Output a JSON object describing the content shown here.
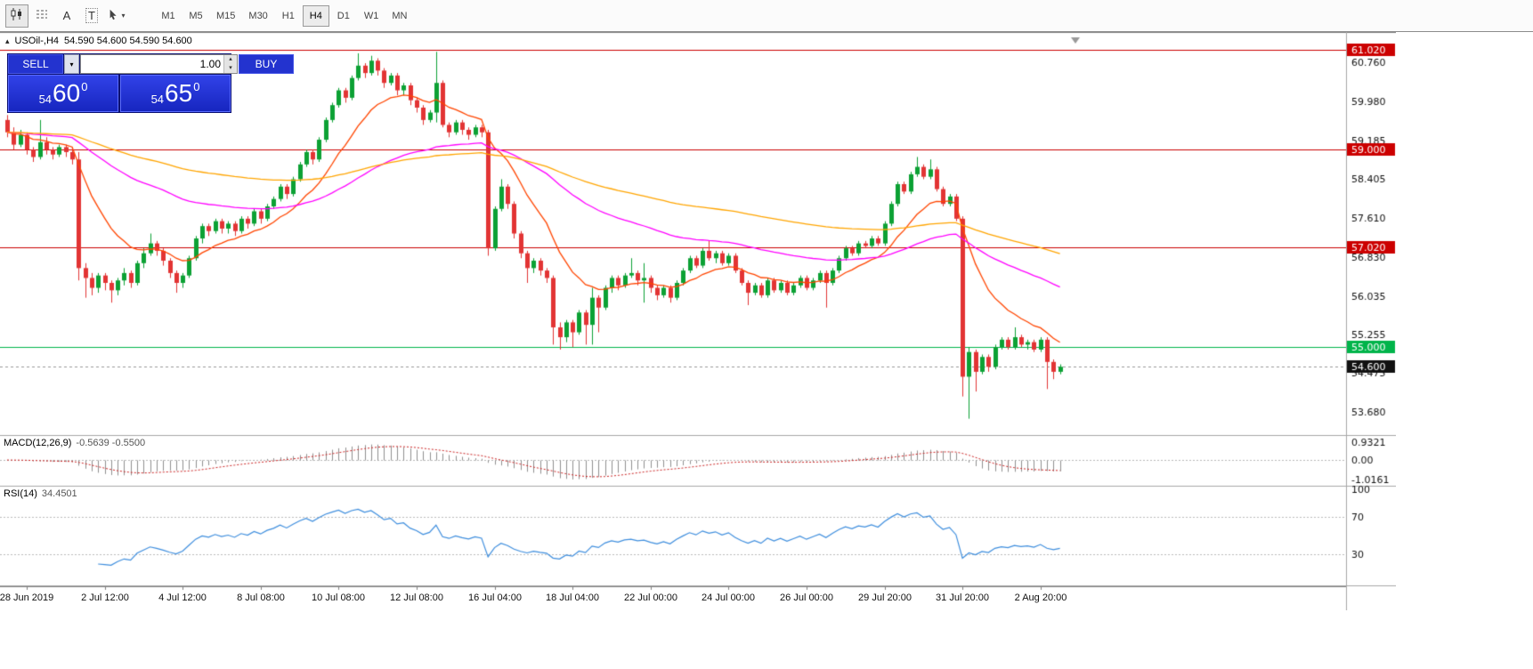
{
  "toolbar": {
    "text_tool_glyph": "A",
    "template_tool_glyph": "T",
    "caret_down": "▾",
    "timeframes": [
      "M1",
      "M5",
      "M15",
      "M30",
      "H1",
      "H4",
      "D1",
      "W1",
      "MN"
    ],
    "active_timeframe": "H4"
  },
  "chart": {
    "marker": "▴",
    "title_symbol": "USOil-,H4",
    "title_quotes": "54.590 54.600 54.590 54.600"
  },
  "trade_panel": {
    "sell_label": "SELL",
    "buy_label": "BUY",
    "volume": "1.00",
    "sell_price_small": "54",
    "sell_price_big": "60",
    "sell_price_sup": "0",
    "buy_price_small": "54",
    "buy_price_big": "65",
    "buy_price_sup": "0",
    "spinner_up": "▴",
    "spinner_down": "▾",
    "dropdown_caret": "▾"
  },
  "indicators": {
    "macd_name": "MACD(12,26,9)",
    "macd_values": "-0.5639 -0.5500",
    "rsi_name": "RSI(14)",
    "rsi_value": "34.4501"
  },
  "chart_data": {
    "type": "candlestick",
    "symbol": "USOil-",
    "timeframe": "H4",
    "price_axis": {
      "max": 61.345,
      "min": 53.237
    },
    "price_axis_labels": [
      "60.760",
      "59.980",
      "59.185",
      "58.405",
      "57.610",
      "56.830",
      "56.035",
      "55.255",
      "54.475",
      "53.680"
    ],
    "hlines": [
      {
        "price": 61.02,
        "color": "#CC0000",
        "tag": "61.020"
      },
      {
        "price": 59.0,
        "color": "#CC0000",
        "tag": "59.000"
      },
      {
        "price": 57.02,
        "color": "#CC0000",
        "tag": "57.020"
      },
      {
        "price": 55.0,
        "color": "#00B44A",
        "tag": "55.000"
      }
    ],
    "current_price": {
      "value": 54.6,
      "tag": "54.600",
      "color": "#111111",
      "line_color": "#999999"
    },
    "colors": {
      "up": "#0CA134",
      "down": "#E23434"
    },
    "moving_averages": [
      {
        "period": 13,
        "color": "#FF4500"
      },
      {
        "period": 55,
        "color": "#FF00FF"
      },
      {
        "period": 120,
        "color": "#FFA500"
      }
    ],
    "macd": {
      "params": "12,26,9",
      "value": -0.5639,
      "signal": -0.55,
      "scale_max": 1.27,
      "scale_min": -1.31,
      "axis": [
        {
          "v": 0.9321,
          "t": "0.9321"
        },
        {
          "v": 0,
          "t": "0.00"
        },
        {
          "v": -1.0161,
          "t": "-1.0161"
        }
      ],
      "bar_color": "#909090",
      "signal_color": "#CC2222"
    },
    "rsi": {
      "period": 14,
      "value": 34.4501,
      "scale_max": 103,
      "scale_min": -4,
      "levels": [
        70,
        30
      ],
      "axis": [
        {
          "v": 100,
          "t": "100"
        },
        {
          "v": 70,
          "t": "70"
        },
        {
          "v": 30,
          "t": "30"
        }
      ],
      "line_color": "#3E8EDE"
    },
    "time_labels": [
      {
        "index": 3,
        "label": "28 Jun 2019"
      },
      {
        "index": 15,
        "label": "2 Jul 12:00"
      },
      {
        "index": 27,
        "label": "4 Jul 12:00"
      },
      {
        "index": 39,
        "label": "8 Jul 08:00"
      },
      {
        "index": 51,
        "label": "10 Jul 08:00"
      },
      {
        "index": 63,
        "label": "12 Jul 08:00"
      },
      {
        "index": 75,
        "label": "16 Jul 04:00"
      },
      {
        "index": 87,
        "label": "18 Jul 04:00"
      },
      {
        "index": 99,
        "label": "22 Jul 00:00"
      },
      {
        "index": 111,
        "label": "24 Jul 00:00"
      },
      {
        "index": 123,
        "label": "26 Jul 00:00"
      },
      {
        "index": 135,
        "label": "29 Jul 20:00"
      },
      {
        "index": 147,
        "label": "31 Jul 20:00"
      },
      {
        "index": 159,
        "label": "2 Aug 20:00"
      }
    ],
    "ohlc": [
      [
        59.6,
        59.7,
        59.25,
        59.35
      ],
      [
        59.35,
        59.45,
        59.0,
        59.1
      ],
      [
        59.1,
        59.4,
        59.05,
        59.3
      ],
      [
        59.3,
        59.35,
        58.9,
        59.0
      ],
      [
        59.0,
        59.05,
        58.75,
        58.85
      ],
      [
        58.85,
        59.6,
        58.8,
        59.15
      ],
      [
        59.15,
        59.25,
        58.9,
        59.0
      ],
      [
        59.0,
        59.05,
        58.8,
        58.9
      ],
      [
        58.9,
        59.1,
        58.85,
        59.05
      ],
      [
        59.05,
        59.1,
        58.85,
        58.95
      ],
      [
        58.95,
        59.05,
        58.7,
        58.8
      ],
      [
        58.8,
        58.95,
        56.35,
        56.6
      ],
      [
        56.6,
        56.7,
        56.0,
        56.4
      ],
      [
        56.4,
        56.5,
        56.05,
        56.2
      ],
      [
        56.2,
        56.5,
        56.1,
        56.45
      ],
      [
        56.45,
        56.5,
        56.15,
        56.3
      ],
      [
        56.3,
        56.35,
        55.9,
        56.15
      ],
      [
        56.15,
        56.4,
        56.05,
        56.35
      ],
      [
        56.35,
        56.6,
        56.25,
        56.5
      ],
      [
        56.5,
        56.55,
        56.2,
        56.3
      ],
      [
        56.3,
        56.75,
        56.25,
        56.7
      ],
      [
        56.7,
        57.0,
        56.6,
        56.9
      ],
      [
        56.9,
        57.3,
        56.85,
        57.1
      ],
      [
        57.1,
        57.15,
        56.85,
        56.95
      ],
      [
        56.95,
        57.0,
        56.65,
        56.75
      ],
      [
        56.75,
        56.8,
        56.4,
        56.5
      ],
      [
        56.5,
        56.55,
        56.1,
        56.3
      ],
      [
        56.3,
        56.5,
        56.2,
        56.45
      ],
      [
        56.45,
        56.85,
        56.4,
        56.8
      ],
      [
        56.8,
        57.25,
        56.75,
        57.2
      ],
      [
        57.2,
        57.5,
        57.1,
        57.45
      ],
      [
        57.45,
        57.5,
        57.25,
        57.35
      ],
      [
        57.35,
        57.6,
        57.3,
        57.55
      ],
      [
        57.55,
        57.6,
        57.3,
        57.4
      ],
      [
        57.4,
        57.55,
        57.3,
        57.5
      ],
      [
        57.5,
        57.55,
        57.25,
        57.35
      ],
      [
        57.35,
        57.65,
        57.3,
        57.6
      ],
      [
        57.6,
        57.65,
        57.4,
        57.5
      ],
      [
        57.5,
        57.8,
        57.45,
        57.75
      ],
      [
        57.75,
        57.8,
        57.5,
        57.6
      ],
      [
        57.6,
        57.9,
        57.55,
        57.85
      ],
      [
        57.85,
        58.05,
        57.8,
        58.0
      ],
      [
        58.0,
        58.3,
        57.95,
        58.25
      ],
      [
        58.25,
        58.3,
        58.0,
        58.1
      ],
      [
        58.1,
        58.45,
        58.05,
        58.4
      ],
      [
        58.4,
        58.75,
        58.35,
        58.7
      ],
      [
        58.7,
        59.0,
        58.65,
        58.95
      ],
      [
        58.95,
        59.0,
        58.7,
        58.8
      ],
      [
        58.8,
        59.25,
        58.75,
        59.2
      ],
      [
        59.2,
        59.65,
        59.15,
        59.6
      ],
      [
        59.6,
        59.95,
        59.55,
        59.9
      ],
      [
        59.9,
        60.25,
        59.85,
        60.2
      ],
      [
        60.2,
        60.25,
        59.95,
        60.05
      ],
      [
        60.05,
        60.5,
        60.0,
        60.45
      ],
      [
        60.45,
        60.95,
        60.4,
        60.7
      ],
      [
        60.7,
        60.75,
        60.45,
        60.55
      ],
      [
        60.55,
        60.9,
        60.5,
        60.8
      ],
      [
        60.8,
        60.85,
        60.5,
        60.6
      ],
      [
        60.6,
        60.65,
        60.25,
        60.35
      ],
      [
        60.35,
        60.55,
        60.3,
        60.5
      ],
      [
        60.5,
        60.55,
        60.1,
        60.2
      ],
      [
        60.2,
        60.35,
        60.1,
        60.3
      ],
      [
        60.3,
        60.35,
        59.9,
        60.0
      ],
      [
        60.0,
        60.05,
        59.75,
        59.85
      ],
      [
        59.85,
        59.9,
        59.5,
        59.6
      ],
      [
        59.6,
        59.8,
        59.55,
        59.75
      ],
      [
        59.75,
        60.98,
        59.55,
        60.35
      ],
      [
        60.35,
        60.4,
        59.45,
        59.5
      ],
      [
        59.5,
        59.55,
        59.25,
        59.35
      ],
      [
        59.35,
        59.6,
        59.3,
        59.55
      ],
      [
        59.55,
        59.6,
        59.3,
        59.4
      ],
      [
        59.4,
        59.45,
        59.2,
        59.3
      ],
      [
        59.3,
        59.5,
        59.25,
        59.45
      ],
      [
        59.45,
        59.5,
        59.25,
        59.35
      ],
      [
        59.35,
        59.4,
        56.85,
        57.0
      ],
      [
        57.0,
        57.85,
        56.95,
        57.8
      ],
      [
        57.8,
        58.4,
        57.75,
        58.25
      ],
      [
        58.25,
        58.3,
        57.8,
        57.9
      ],
      [
        57.9,
        57.95,
        57.2,
        57.3
      ],
      [
        57.3,
        57.35,
        56.8,
        56.9
      ],
      [
        56.9,
        56.95,
        56.3,
        56.6
      ],
      [
        56.6,
        56.8,
        56.5,
        56.75
      ],
      [
        56.75,
        56.8,
        56.45,
        56.55
      ],
      [
        56.55,
        56.6,
        56.3,
        56.4
      ],
      [
        56.4,
        56.45,
        55.05,
        55.4
      ],
      [
        55.4,
        55.5,
        54.95,
        55.2
      ],
      [
        55.2,
        55.55,
        55.1,
        55.5
      ],
      [
        55.5,
        55.55,
        55.0,
        55.3
      ],
      [
        55.3,
        55.75,
        55.25,
        55.7
      ],
      [
        55.7,
        55.75,
        55.05,
        55.45
      ],
      [
        55.45,
        56.2,
        55.05,
        56.0
      ],
      [
        56.0,
        56.05,
        55.3,
        55.8
      ],
      [
        55.8,
        56.25,
        55.75,
        56.2
      ],
      [
        56.2,
        56.45,
        56.1,
        56.4
      ],
      [
        56.4,
        56.45,
        56.15,
        56.25
      ],
      [
        56.25,
        56.5,
        56.2,
        56.45
      ],
      [
        56.45,
        56.8,
        56.4,
        56.5
      ],
      [
        56.5,
        56.55,
        56.25,
        56.35
      ],
      [
        56.35,
        56.7,
        55.9,
        56.4
      ],
      [
        56.4,
        56.45,
        56.1,
        56.2
      ],
      [
        56.2,
        56.25,
        55.95,
        56.05
      ],
      [
        56.05,
        56.25,
        56.0,
        56.2
      ],
      [
        56.2,
        56.25,
        55.9,
        56.0
      ],
      [
        56.0,
        56.35,
        55.95,
        56.3
      ],
      [
        56.3,
        56.6,
        56.25,
        56.55
      ],
      [
        56.55,
        56.85,
        56.5,
        56.8
      ],
      [
        56.8,
        56.85,
        56.6,
        56.65
      ],
      [
        56.65,
        57.0,
        56.6,
        56.95
      ],
      [
        56.95,
        57.15,
        56.75,
        56.8
      ],
      [
        56.8,
        56.95,
        56.7,
        56.9
      ],
      [
        56.9,
        56.95,
        56.65,
        56.7
      ],
      [
        56.7,
        56.9,
        56.65,
        56.85
      ],
      [
        56.85,
        56.9,
        56.5,
        56.55
      ],
      [
        56.55,
        56.6,
        56.25,
        56.3
      ],
      [
        56.3,
        56.35,
        55.85,
        56.1
      ],
      [
        56.1,
        56.3,
        56.05,
        56.25
      ],
      [
        56.25,
        56.3,
        56.0,
        56.05
      ],
      [
        56.05,
        56.4,
        56.0,
        56.35
      ],
      [
        56.35,
        56.4,
        56.1,
        56.15
      ],
      [
        56.15,
        56.35,
        56.1,
        56.3
      ],
      [
        56.3,
        56.35,
        56.05,
        56.1
      ],
      [
        56.1,
        56.3,
        56.05,
        56.25
      ],
      [
        56.25,
        56.45,
        56.2,
        56.4
      ],
      [
        56.4,
        56.45,
        56.15,
        56.2
      ],
      [
        56.2,
        56.4,
        56.15,
        56.35
      ],
      [
        56.35,
        56.55,
        56.3,
        56.5
      ],
      [
        56.5,
        56.55,
        55.8,
        56.3
      ],
      [
        56.3,
        56.6,
        56.25,
        56.55
      ],
      [
        56.55,
        56.85,
        56.5,
        56.8
      ],
      [
        56.8,
        57.05,
        56.75,
        57.0
      ],
      [
        57.0,
        57.05,
        56.85,
        56.9
      ],
      [
        56.9,
        57.15,
        56.85,
        57.1
      ],
      [
        57.1,
        57.15,
        57.0,
        57.05
      ],
      [
        57.05,
        57.25,
        57.0,
        57.2
      ],
      [
        57.2,
        57.25,
        57.05,
        57.1
      ],
      [
        57.1,
        57.55,
        57.05,
        57.5
      ],
      [
        57.5,
        57.95,
        57.45,
        57.9
      ],
      [
        57.9,
        58.35,
        57.85,
        58.3
      ],
      [
        58.3,
        58.35,
        58.1,
        58.15
      ],
      [
        58.15,
        58.55,
        58.1,
        58.5
      ],
      [
        58.5,
        58.85,
        58.45,
        58.65
      ],
      [
        58.65,
        58.7,
        58.4,
        58.45
      ],
      [
        58.45,
        58.8,
        58.4,
        58.6
      ],
      [
        58.6,
        58.65,
        58.15,
        58.2
      ],
      [
        58.2,
        58.25,
        57.85,
        57.9
      ],
      [
        57.9,
        58.1,
        57.85,
        58.05
      ],
      [
        58.05,
        58.1,
        57.55,
        57.6
      ],
      [
        57.6,
        57.65,
        54.0,
        54.4
      ],
      [
        54.4,
        55.0,
        53.55,
        54.9
      ],
      [
        54.9,
        54.95,
        54.1,
        54.5
      ],
      [
        54.5,
        54.85,
        54.45,
        54.8
      ],
      [
        54.8,
        54.85,
        54.5,
        54.6
      ],
      [
        54.6,
        55.05,
        54.55,
        55.0
      ],
      [
        55.0,
        55.2,
        54.95,
        55.15
      ],
      [
        55.15,
        55.2,
        54.95,
        55.0
      ],
      [
        55.0,
        55.4,
        54.95,
        55.2
      ],
      [
        55.2,
        55.25,
        55.0,
        55.05
      ],
      [
        55.05,
        55.15,
        54.95,
        55.1
      ],
      [
        55.1,
        55.15,
        54.9,
        54.95
      ],
      [
        54.95,
        55.2,
        54.9,
        55.15
      ],
      [
        55.15,
        55.2,
        54.15,
        54.7
      ],
      [
        54.7,
        54.75,
        54.35,
        54.5
      ],
      [
        54.5,
        54.65,
        54.45,
        54.6
      ]
    ]
  }
}
